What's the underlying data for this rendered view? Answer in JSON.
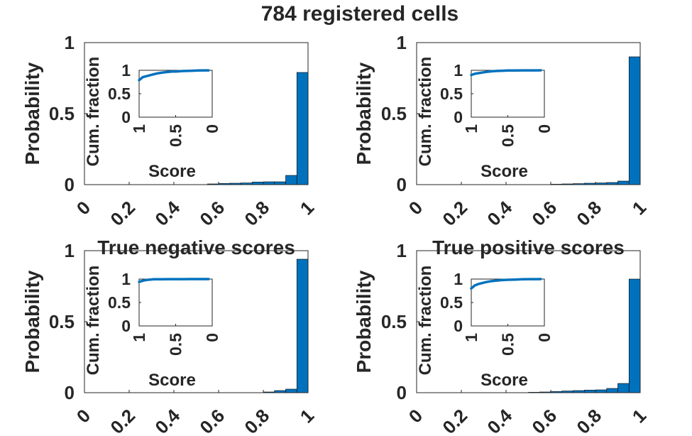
{
  "figure": {
    "title": "784 registered cells"
  },
  "chart_data": [
    {
      "type": "bar",
      "title": "",
      "xlabel": "",
      "ylabel": "Probability",
      "xlim": [
        0,
        1
      ],
      "ylim": [
        0,
        1
      ],
      "xticks": [
        "0",
        "0.2",
        "0.4",
        "0.6",
        "0.8",
        "1"
      ],
      "yticks": [
        "0",
        "0.5",
        "1"
      ],
      "bin_edges": [
        0.55,
        0.6,
        0.65,
        0.7,
        0.75,
        0.8,
        0.85,
        0.9,
        0.95,
        1.0
      ],
      "values": [
        0.005,
        0.008,
        0.01,
        0.012,
        0.018,
        0.02,
        0.02,
        0.065,
        0.79
      ],
      "inset": {
        "type": "line",
        "xlabel": "Score",
        "ylabel": "Cum. fraction",
        "xticks": [
          "1",
          "0.5",
          "0"
        ],
        "yticks": [
          "0",
          "0.5",
          "1"
        ],
        "xlim": [
          1,
          0
        ],
        "ylim": [
          0,
          1
        ],
        "x": [
          1.0,
          0.95,
          0.9,
          0.85,
          0.8,
          0.75,
          0.7,
          0.65,
          0.6,
          0.55,
          0.5,
          0.4,
          0.3,
          0.2,
          0.1,
          0.05
        ],
        "y": [
          0.79,
          0.855,
          0.875,
          0.895,
          0.915,
          0.935,
          0.947,
          0.957,
          0.965,
          0.972,
          0.975,
          0.985,
          0.99,
          0.995,
          0.998,
          0.999
        ]
      }
    },
    {
      "type": "bar",
      "title": "",
      "xlabel": "",
      "ylabel": "Probability",
      "xlim": [
        0,
        1
      ],
      "ylim": [
        0,
        1
      ],
      "xticks": [
        "0",
        "0.2",
        "0.4",
        "0.6",
        "0.8",
        "1"
      ],
      "yticks": [
        "0",
        "0.5",
        "1"
      ],
      "bin_edges": [
        0.6,
        0.65,
        0.7,
        0.75,
        0.8,
        0.85,
        0.9,
        0.95,
        1.0
      ],
      "values": [
        0.003,
        0.005,
        0.007,
        0.01,
        0.012,
        0.015,
        0.025,
        0.9
      ],
      "inset": {
        "type": "line",
        "xlabel": "Score",
        "ylabel": "Cum. fraction",
        "xticks": [
          "1",
          "0.5",
          "0"
        ],
        "yticks": [
          "0",
          "0.5",
          "1"
        ],
        "xlim": [
          1,
          0
        ],
        "ylim": [
          0,
          1
        ],
        "x": [
          1.0,
          0.95,
          0.9,
          0.85,
          0.8,
          0.75,
          0.7,
          0.65,
          0.6,
          0.55,
          0.5,
          0.4,
          0.3,
          0.2,
          0.1,
          0.05
        ],
        "y": [
          0.9,
          0.925,
          0.94,
          0.952,
          0.965,
          0.975,
          0.982,
          0.987,
          0.99,
          0.993,
          0.995,
          0.997,
          0.998,
          0.999,
          0.999,
          1.0
        ]
      }
    },
    {
      "type": "bar",
      "title": "True negative scores",
      "xlabel": "",
      "ylabel": "Probability",
      "xlim": [
        0,
        1
      ],
      "ylim": [
        0,
        1
      ],
      "xticks": [
        "0",
        "0.2",
        "0.4",
        "0.6",
        "0.8",
        "1"
      ],
      "yticks": [
        "0",
        "0.5",
        "1"
      ],
      "bin_edges": [
        0.8,
        0.85,
        0.9,
        0.95,
        1.0
      ],
      "values": [
        0.005,
        0.015,
        0.025,
        0.94
      ],
      "inset": {
        "type": "line",
        "xlabel": "Score",
        "ylabel": "Cum. fraction",
        "xticks": [
          "1",
          "0.5",
          "0"
        ],
        "yticks": [
          "0",
          "0.5",
          "1"
        ],
        "xlim": [
          1,
          0
        ],
        "ylim": [
          0,
          1
        ],
        "x": [
          1.0,
          0.95,
          0.9,
          0.85,
          0.8,
          0.7,
          0.6,
          0.5,
          0.4,
          0.3,
          0.2,
          0.1,
          0.05
        ],
        "y": [
          0.94,
          0.965,
          0.98,
          0.99,
          0.995,
          0.997,
          0.998,
          0.999,
          0.999,
          1.0,
          1.0,
          1.0,
          1.0
        ]
      }
    },
    {
      "type": "bar",
      "title": "True positive scores",
      "xlabel": "",
      "ylabel": "Probability",
      "xlim": [
        0,
        1
      ],
      "ylim": [
        0,
        1
      ],
      "xticks": [
        "0",
        "0.2",
        "0.4",
        "0.6",
        "0.8",
        "1"
      ],
      "yticks": [
        "0",
        "0.5",
        "1"
      ],
      "bin_edges": [
        0.5,
        0.55,
        0.6,
        0.65,
        0.7,
        0.75,
        0.8,
        0.85,
        0.9,
        0.95,
        1.0
      ],
      "values": [
        0.003,
        0.005,
        0.008,
        0.012,
        0.015,
        0.018,
        0.02,
        0.03,
        0.065,
        0.8
      ],
      "inset": {
        "type": "line",
        "xlabel": "Score",
        "ylabel": "Cum. fraction",
        "xticks": [
          "1",
          "0.5",
          "0"
        ],
        "yticks": [
          "0",
          "0.5",
          "1"
        ],
        "xlim": [
          1,
          0
        ],
        "ylim": [
          0,
          1
        ],
        "x": [
          1.0,
          0.95,
          0.9,
          0.85,
          0.8,
          0.75,
          0.7,
          0.65,
          0.6,
          0.55,
          0.5,
          0.4,
          0.3,
          0.2,
          0.1,
          0.05
        ],
        "y": [
          0.8,
          0.865,
          0.895,
          0.915,
          0.935,
          0.95,
          0.96,
          0.968,
          0.975,
          0.98,
          0.985,
          0.99,
          0.995,
          0.998,
          0.999,
          1.0
        ]
      }
    }
  ]
}
